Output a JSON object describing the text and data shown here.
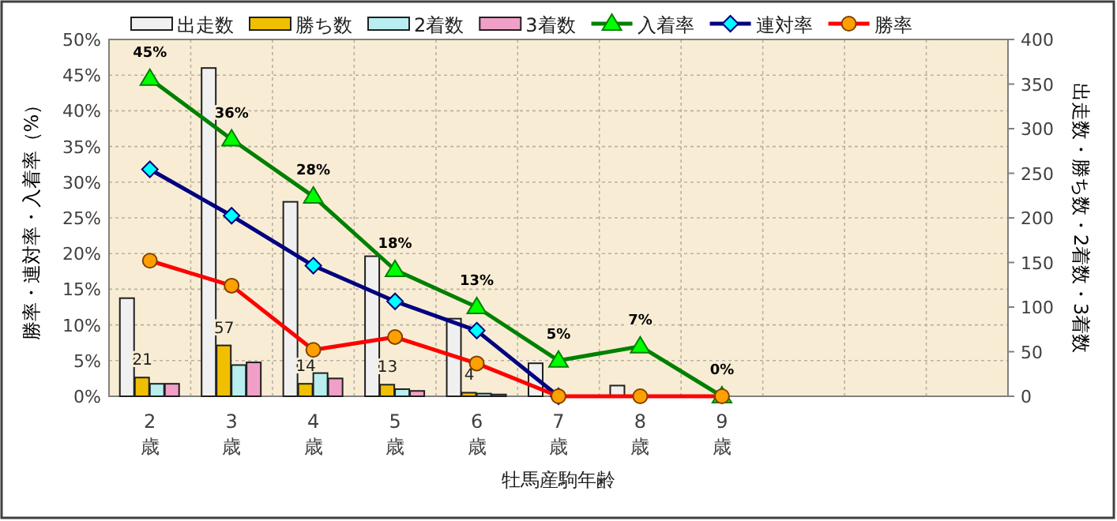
{
  "chart_data": {
    "type": "bar",
    "xlabel": "牡馬産駒年齢",
    "ylabel": "勝率・連対率・入着率（%）",
    "y2label": "出走数・勝ち数・2着数・3着数",
    "categories": [
      "2\n歳",
      "3\n歳",
      "4\n歳",
      "5\n歳",
      "6\n歳",
      "7\n歳",
      "8\n歳",
      "9\n歳",
      null,
      null,
      null
    ],
    "ylim": [
      0,
      50
    ],
    "yticks": [
      {
        "value": 0,
        "label": "0%"
      },
      {
        "value": 5,
        "label": "5%"
      },
      {
        "value": 10,
        "label": "10%"
      },
      {
        "value": 15,
        "label": "15%"
      },
      {
        "value": 20,
        "label": "20%"
      },
      {
        "value": 25,
        "label": "25%"
      },
      {
        "value": 30,
        "label": "30%"
      },
      {
        "value": 35,
        "label": "35%"
      },
      {
        "value": 40,
        "label": "40%"
      },
      {
        "value": 45,
        "label": "45%"
      },
      {
        "value": 50,
        "label": "50%"
      }
    ],
    "y2lim": [
      0,
      400
    ],
    "y2ticks": [
      0,
      50,
      100,
      150,
      200,
      250,
      300,
      350,
      400
    ],
    "grid": true,
    "legend": "top",
    "series": [
      {
        "name": "出走数",
        "axis": "y2",
        "color": "#f0f0f0",
        "values": [
          110,
          368,
          218,
          157,
          87,
          37,
          12,
          0,
          null,
          null,
          null
        ]
      },
      {
        "name": "勝ち数",
        "axis": "y2",
        "color": "#f0c000",
        "values": [
          21,
          57,
          14,
          13,
          4,
          0,
          0,
          0,
          null,
          null,
          null
        ],
        "value_labels": [
          "21",
          "57",
          "14",
          "13",
          "4",
          null,
          null,
          null,
          null,
          null,
          null
        ]
      },
      {
        "name": "2着数",
        "axis": "y2",
        "color": "#b8eef0",
        "values": [
          14,
          35,
          26,
          8,
          3,
          0,
          0,
          0,
          null,
          null,
          null
        ]
      },
      {
        "name": "3着数",
        "axis": "y2",
        "color": "#f0a0c8",
        "values": [
          14,
          38,
          20,
          6,
          2,
          0,
          0,
          0,
          null,
          null,
          null
        ]
      },
      {
        "name": "入着率",
        "type": "line",
        "color": "#008000",
        "marker": "triangle",
        "values": [
          44.5,
          36,
          28,
          17.7,
          12.5,
          5,
          7,
          0,
          null,
          null,
          null
        ],
        "value_labels": [
          "45%",
          "36%",
          "28%",
          "18%",
          "13%",
          "5%",
          "7%",
          "0%",
          null,
          null,
          null
        ]
      },
      {
        "name": "連対率",
        "type": "line",
        "color": "#000080",
        "marker": "diamond",
        "values": [
          31.8,
          25.3,
          18.3,
          13.3,
          9.2,
          0,
          null,
          null,
          null,
          null,
          null
        ]
      },
      {
        "name": "勝率",
        "type": "line",
        "color": "#ff0000",
        "marker": "circle",
        "values": [
          19,
          15.5,
          6.5,
          8.3,
          4.6,
          0,
          0,
          0,
          null,
          null,
          null
        ]
      }
    ]
  }
}
